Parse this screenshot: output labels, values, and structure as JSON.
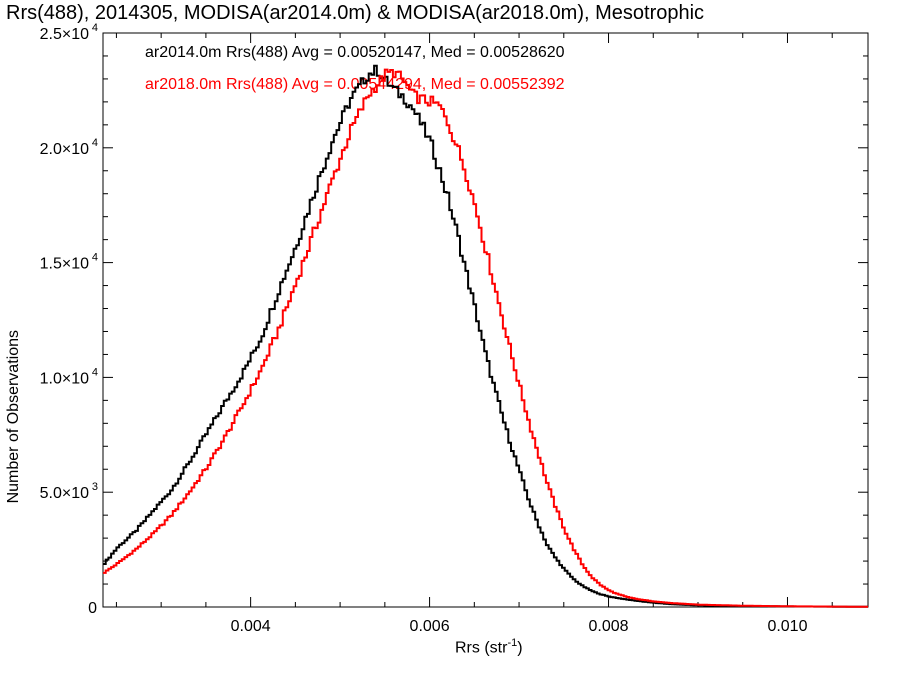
{
  "chart_data": {
    "type": "line",
    "title": "Rrs(488), 2014305, MODISA(ar2014.0m) & MODISA(ar2018.0m), Mesotrophic",
    "xlabel": "Rrs (str",
    "xlabel_sup": "-1",
    "xlabel_end": ")",
    "ylabel": "Number of Observations",
    "xlim": [
      0.00235,
      0.0109
    ],
    "ylim": [
      0,
      25000
    ],
    "x_ticks": [
      0.004,
      0.006,
      0.008,
      0.01
    ],
    "x_tick_labels": [
      "0.004",
      "0.006",
      "0.008",
      "0.010"
    ],
    "y_ticks": [
      0,
      5000,
      10000,
      15000,
      20000,
      25000
    ],
    "y_tick_labels": [
      {
        "mant": "0",
        "exp": ""
      },
      {
        "mant": "5.0×10",
        "exp": "3"
      },
      {
        "mant": "1.0×10",
        "exp": "4"
      },
      {
        "mant": "1.5×10",
        "exp": "4"
      },
      {
        "mant": "2.0×10",
        "exp": "4"
      },
      {
        "mant": "2.5×10",
        "exp": "4"
      }
    ],
    "series": [
      {
        "name": "ar2014.0m Rrs(488) Avg = 0.00520147, Med = 0.00528620",
        "color": "#000000",
        "x": [
          0.00235,
          0.0025,
          0.0027,
          0.0029,
          0.0031,
          0.0033,
          0.0035,
          0.0037,
          0.0039,
          0.0041,
          0.0043,
          0.0045,
          0.0047,
          0.0049,
          0.0051,
          0.0053,
          0.0054,
          0.0055,
          0.0056,
          0.0057,
          0.0058,
          0.0059,
          0.006,
          0.0061,
          0.0062,
          0.0063,
          0.0064,
          0.0065,
          0.0066,
          0.0067,
          0.0068,
          0.0069,
          0.007,
          0.0071,
          0.0072,
          0.0073,
          0.0074,
          0.0075,
          0.0076,
          0.0077,
          0.0078,
          0.0079,
          0.008,
          0.0081,
          0.0082,
          0.0083,
          0.0085,
          0.0087,
          0.009,
          0.0095,
          0.01,
          0.0105,
          0.0109
        ],
        "y": [
          1900,
          2600,
          3300,
          4200,
          5100,
          6300,
          7600,
          8900,
          10200,
          11700,
          13800,
          15800,
          18100,
          20300,
          22100,
          23200,
          23400,
          22900,
          22500,
          22200,
          21700,
          21000,
          20200,
          19000,
          17700,
          16200,
          14500,
          12900,
          11200,
          9700,
          8300,
          7000,
          5800,
          4600,
          3600,
          2700,
          2100,
          1600,
          1200,
          900,
          700,
          550,
          450,
          380,
          320,
          270,
          180,
          120,
          70,
          40,
          25,
          15,
          10
        ]
      },
      {
        "name": "ar2018.0m Rrs(488) Avg = 0.00544294, Med = 0.00552392",
        "color": "#ff0000",
        "x": [
          0.00235,
          0.0025,
          0.0027,
          0.0029,
          0.0031,
          0.0033,
          0.0035,
          0.0037,
          0.0039,
          0.0041,
          0.0043,
          0.0045,
          0.0047,
          0.0049,
          0.0051,
          0.0053,
          0.0055,
          0.0056,
          0.0057,
          0.0058,
          0.0059,
          0.006,
          0.0061,
          0.0062,
          0.0063,
          0.0064,
          0.0065,
          0.0066,
          0.0067,
          0.0068,
          0.0069,
          0.007,
          0.0071,
          0.0072,
          0.0073,
          0.0074,
          0.0075,
          0.0076,
          0.0077,
          0.0078,
          0.0079,
          0.008,
          0.0081,
          0.0082,
          0.0083,
          0.0085,
          0.0087,
          0.009,
          0.0095,
          0.01,
          0.0105,
          0.0109
        ],
        "y": [
          1500,
          1900,
          2500,
          3200,
          4000,
          5000,
          6100,
          7400,
          8800,
          10300,
          12100,
          14200,
          16400,
          18600,
          20700,
          22300,
          23200,
          23300,
          22900,
          22300,
          22100,
          22000,
          21800,
          21000,
          20000,
          18800,
          17400,
          15800,
          14200,
          12600,
          11000,
          9500,
          8000,
          6700,
          5400,
          4300,
          3300,
          2500,
          1800,
          1300,
          950,
          700,
          550,
          430,
          350,
          240,
          170,
          100,
          55,
          30,
          18,
          10
        ]
      }
    ],
    "grid": false,
    "legend": "top-left"
  }
}
